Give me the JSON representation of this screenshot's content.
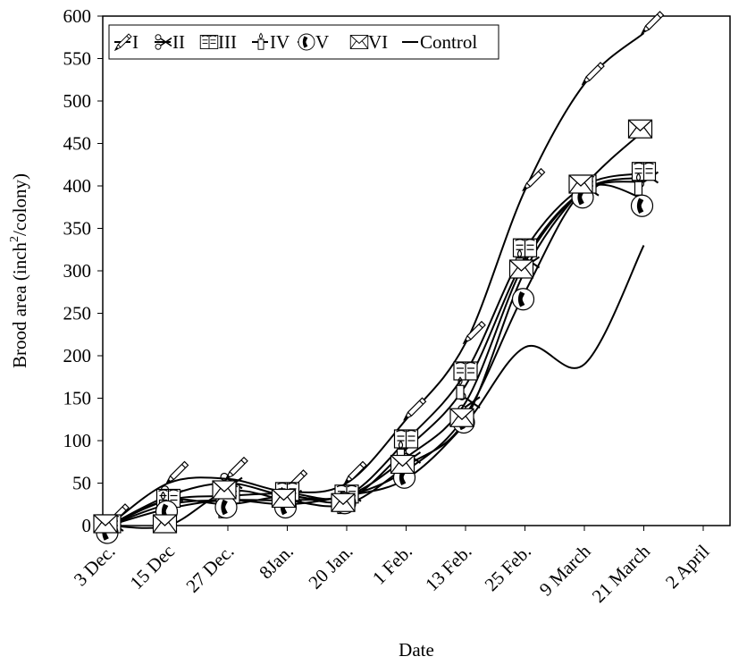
{
  "chart_data": {
    "type": "line",
    "xlabel": "Date",
    "ylabel_main": "Brood area  (inch",
    "ylabel_sup": "2",
    "ylabel_tail": "/colony)",
    "ylim": [
      0,
      600
    ],
    "yticks": [
      0,
      50,
      100,
      150,
      200,
      250,
      300,
      350,
      400,
      450,
      500,
      550,
      600
    ],
    "x_tick_labels": [
      "3 Dec.",
      "15 Dec",
      "27 Dec.",
      "8Jan.",
      "20 Jan.",
      "1 Feb.",
      "13 Feb.",
      "25 Feb.",
      "9 March",
      "21 March",
      "2 April"
    ],
    "grid": false,
    "legend_position": "top-left",
    "series": [
      {
        "name": "I",
        "marker": "pencil",
        "values": [
          0,
          50,
          55,
          40,
          50,
          125,
          215,
          395,
          520,
          580
        ]
      },
      {
        "name": "II",
        "marker": "scissors",
        "values": [
          0,
          35,
          50,
          35,
          35,
          80,
          145,
          310,
          395,
          410
        ]
      },
      {
        "name": "III",
        "marker": "book",
        "values": [
          0,
          30,
          35,
          38,
          35,
          100,
          180,
          325,
          400,
          415
        ]
      },
      {
        "name": "IV",
        "marker": "candle",
        "values": [
          0,
          30,
          25,
          35,
          30,
          90,
          165,
          315,
          395,
          405
        ]
      },
      {
        "name": "V",
        "marker": "phone",
        "values": [
          0,
          25,
          30,
          30,
          35,
          65,
          130,
          275,
          395,
          385
        ]
      },
      {
        "name": "VI",
        "marker": "envelope",
        "values": [
          0,
          0,
          40,
          30,
          25,
          70,
          125,
          300,
          400,
          465
        ]
      },
      {
        "name": "Control",
        "marker": "none",
        "values": [
          0,
          20,
          30,
          25,
          35,
          55,
          120,
          210,
          190,
          330
        ]
      }
    ],
    "line_color": "#000000"
  }
}
